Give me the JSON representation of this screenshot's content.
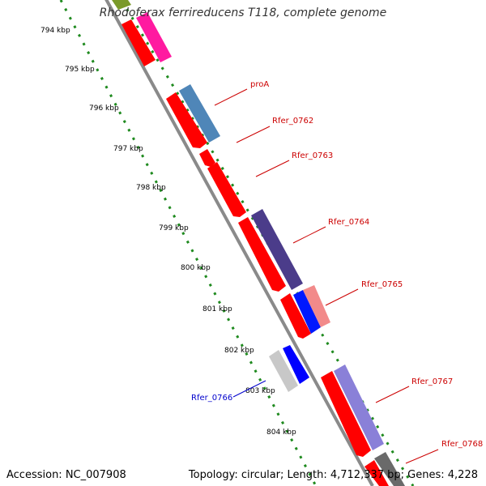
{
  "title": "Rhodoferax ferrireducens T118, complete genome",
  "accession": "Accession: NC_007908",
  "topology": "Topology: circular; Length: 4,712,337 bp; Genes: 4,228",
  "colors": {
    "backbone": "#8a8a8a",
    "tick_green": "#1f8a1f",
    "forward_label": "#cc0000",
    "reverse_label": "#0000cc"
  },
  "ruler": [
    {
      "label": "794 kbp"
    },
    {
      "label": "795 kbp"
    },
    {
      "label": "796 kbp"
    },
    {
      "label": "797 kbp"
    },
    {
      "label": "798 kbp"
    },
    {
      "label": "799 kbp"
    },
    {
      "label": "800 kbp"
    },
    {
      "label": "801 kbp"
    },
    {
      "label": "802 kbp"
    },
    {
      "label": "803 kbp"
    },
    {
      "label": "804 kbp"
    }
  ],
  "genes": [
    {
      "name": "",
      "strand": "+"
    },
    {
      "name": "proA",
      "strand": "+"
    },
    {
      "name": "Rfer_0762",
      "strand": "+"
    },
    {
      "name": "Rfer_0763",
      "strand": "+"
    },
    {
      "name": "Rfer_0764",
      "strand": "+"
    },
    {
      "name": "Rfer_0765",
      "strand": "+"
    },
    {
      "name": "Rfer_0766",
      "strand": "-"
    },
    {
      "name": "Rfer_0767",
      "strand": "+"
    },
    {
      "name": "Rfer_0768",
      "strand": "+"
    }
  ]
}
